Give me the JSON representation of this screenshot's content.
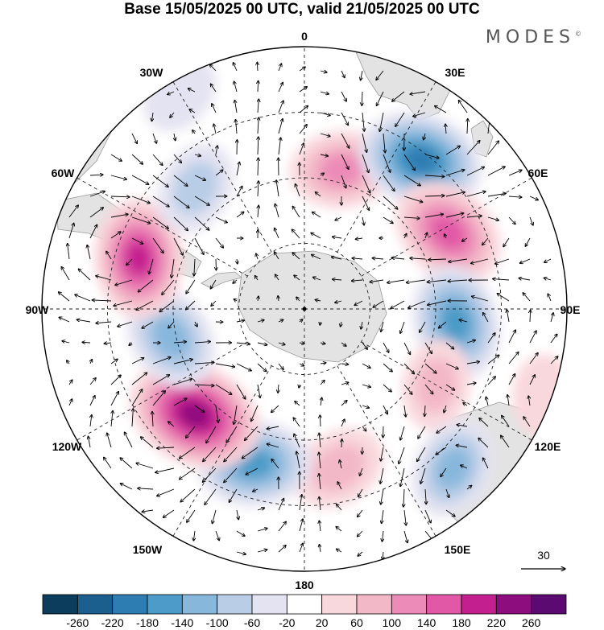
{
  "title": "Base 15/05/2025 00 UTC, valid 21/05/2025 00 UTC",
  "brand": "MODES",
  "brand_mark": "©",
  "map": {
    "projection": "south-polar-stereographic",
    "longitude_labels": [
      "0",
      "30E",
      "60E",
      "90E",
      "120E",
      "150E",
      "180",
      "150W",
      "120W",
      "90W",
      "60W",
      "30W"
    ],
    "reference_vector_label": "30",
    "colors": {
      "land": "#e3e3e3",
      "coast": "#9a9a9a",
      "grid": "#222222",
      "arrow": "#000000"
    }
  },
  "colorbar": {
    "tick_labels": [
      "-260",
      "-220",
      "-180",
      "-140",
      "-100",
      "-60",
      "-20",
      "20",
      "60",
      "100",
      "140",
      "180",
      "220",
      "260"
    ],
    "colors": [
      "#0c3d5c",
      "#1b5f8f",
      "#2d7db3",
      "#4c9bc8",
      "#88b7dc",
      "#b9cde7",
      "#e4e3f1",
      "#ffffff",
      "#f9d8dd",
      "#f3b8c7",
      "#ec8bb7",
      "#e159a6",
      "#c41f8f",
      "#8e0d7e",
      "#5a0a70"
    ]
  },
  "anomalies": [
    {
      "name": "pos-near-0",
      "lon": 15,
      "dist": 0.55,
      "value": 120
    },
    {
      "name": "neg-near-30E",
      "lon": 38,
      "dist": 0.72,
      "value": -200
    },
    {
      "name": "pos-near-50E",
      "lon": 62,
      "dist": 0.62,
      "value": 170
    },
    {
      "name": "neg-near-90E",
      "lon": 95,
      "dist": 0.58,
      "value": -160
    },
    {
      "name": "pos-near-110E",
      "lon": 120,
      "dist": 0.58,
      "value": 70
    },
    {
      "name": "neg-near-135E",
      "lon": 137,
      "dist": 0.83,
      "value": -110
    },
    {
      "name": "pos-near-170E",
      "lon": 168,
      "dist": 0.62,
      "value": 90
    },
    {
      "name": "neg-near-165W",
      "lon": 198,
      "dist": 0.62,
      "value": -160
    },
    {
      "name": "pos-near-130W",
      "lon": 226,
      "dist": 0.58,
      "value": 240
    },
    {
      "name": "neg-near-100W",
      "lon": 258,
      "dist": 0.52,
      "value": -130
    },
    {
      "name": "pos-near-75W",
      "lon": 287,
      "dist": 0.66,
      "value": 180
    },
    {
      "name": "neg-near-45W",
      "lon": 318,
      "dist": 0.62,
      "value": -80
    },
    {
      "name": "pos-near-120E-outer",
      "lon": 110,
      "dist": 0.97,
      "value": 40
    },
    {
      "name": "neg-near-30W-outer",
      "lon": 330,
      "dist": 0.95,
      "value": -40
    }
  ]
}
